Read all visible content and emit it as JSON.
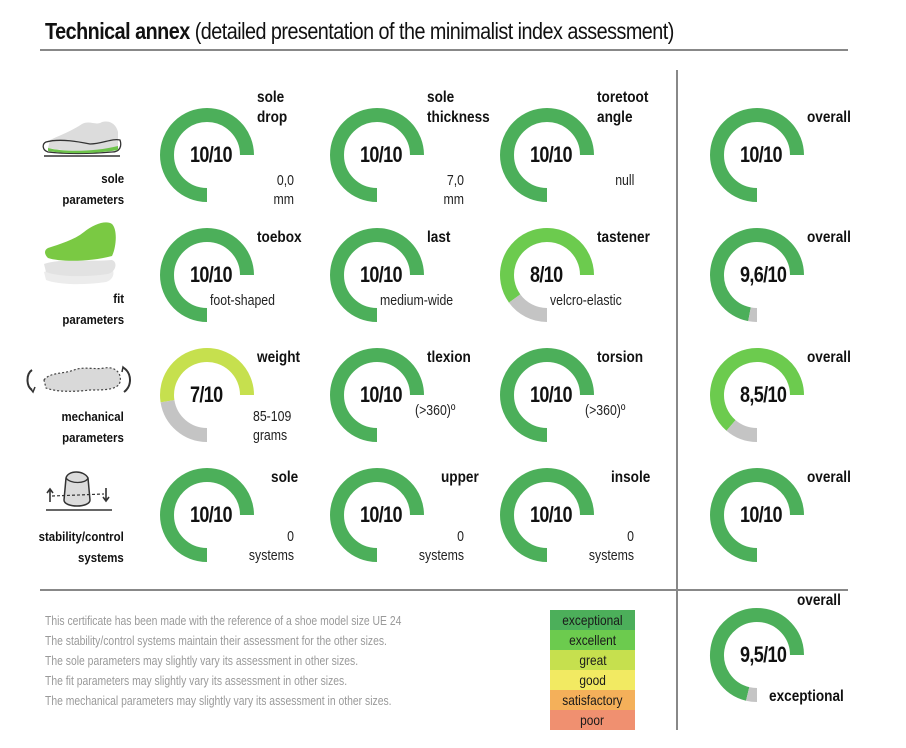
{
  "header": {
    "title_bold": "Technical annex",
    "title_rest": "(detailed presentation of the minimalist index assessment)"
  },
  "colors": {
    "exceptional": "#4caf5a",
    "excellent": "#6ccb4e",
    "great": "#c6e04e",
    "good": "#f2ea62",
    "satisfactory": "#f4b05a",
    "poor": "#f09070",
    "remainder": "#c4c4c4"
  },
  "rows": [
    {
      "id": "sole",
      "label_lines": [
        "sole",
        "parameters"
      ],
      "icon": "shoe-sole-icon",
      "gauges": [
        {
          "label_lines": [
            "sole",
            "drop"
          ],
          "score_text": "10/10",
          "score": 10,
          "value_lines": [
            "0,0",
            "mm"
          ],
          "color": "exceptional"
        },
        {
          "label_lines": [
            "sole",
            "thickness"
          ],
          "score_text": "10/10",
          "score": 10,
          "value_lines": [
            "7,0",
            "mm"
          ],
          "color": "exceptional"
        },
        {
          "label_lines": [
            "toretoot",
            "angle"
          ],
          "score_text": "10/10",
          "score": 10,
          "value_lines": [
            "null"
          ],
          "color": "exceptional"
        }
      ],
      "overall": {
        "label": "overall",
        "score_text": "10/10",
        "score": 10,
        "color": "exceptional"
      }
    },
    {
      "id": "fit",
      "label_lines": [
        "fit",
        "parameters"
      ],
      "icon": "shoe-upper-icon",
      "gauges": [
        {
          "label_lines": [
            "toebox"
          ],
          "score_text": "10/10",
          "score": 10,
          "value_lines": [
            "foot-shaped"
          ],
          "color": "exceptional"
        },
        {
          "label_lines": [
            "last"
          ],
          "score_text": "10/10",
          "score": 10,
          "value_lines": [
            "medium-wide"
          ],
          "color": "exceptional"
        },
        {
          "label_lines": [
            "tastener"
          ],
          "score_text": "8/10",
          "score": 8,
          "value_lines": [
            "velcro-elastic"
          ],
          "color": "excellent"
        }
      ],
      "overall": {
        "label": "overall",
        "score_text": "9,6/10",
        "score": 9.6,
        "color": "exceptional"
      }
    },
    {
      "id": "mechanical",
      "label_lines": [
        "mechanical",
        "parameters"
      ],
      "icon": "shoe-flex-icon",
      "gauges": [
        {
          "label_lines": [
            "weight"
          ],
          "score_text": "7/10",
          "score": 7,
          "value_lines": [
            "85-109",
            "grams"
          ],
          "color": "great"
        },
        {
          "label_lines": [
            "tlexion"
          ],
          "score_text": "10/10",
          "score": 10,
          "value_lines": [
            "(>360)º"
          ],
          "color": "exceptional"
        },
        {
          "label_lines": [
            "torsion"
          ],
          "score_text": "10/10",
          "score": 10,
          "value_lines": [
            "(>360)º"
          ],
          "color": "exceptional"
        }
      ],
      "overall": {
        "label": "overall",
        "score_text": "8,5/10",
        "score": 8.5,
        "color": "excellent"
      }
    },
    {
      "id": "stability",
      "label_lines": [
        "stability/control",
        "systems"
      ],
      "icon": "heel-stability-icon",
      "gauges": [
        {
          "label_lines": [
            "sole"
          ],
          "score_text": "10/10",
          "score": 10,
          "value_lines": [
            "0",
            "systems"
          ],
          "color": "exceptional"
        },
        {
          "label_lines": [
            "upper"
          ],
          "score_text": "10/10",
          "score": 10,
          "value_lines": [
            "0",
            "systems"
          ],
          "color": "exceptional"
        },
        {
          "label_lines": [
            "insole"
          ],
          "score_text": "10/10",
          "score": 10,
          "value_lines": [
            "0",
            "systems"
          ],
          "color": "exceptional"
        }
      ],
      "overall": {
        "label": "overall",
        "score_text": "10/10",
        "score": 10,
        "color": "exceptional"
      }
    }
  ],
  "final": {
    "label": "overall",
    "score_text": "9,5/10",
    "score": 9.5,
    "rating": "exceptional",
    "color": "exceptional"
  },
  "notes": [
    "This certificate has been made with the reference of a shoe model size UE 24",
    "The stability/control systems maintain their assessment for the other sizes.",
    "The sole parameters may slightly vary its assessment in other sizes.",
    "The fit parameters may slightly vary its assessment in other sizes.",
    "The mechanical parameters may slightly vary its assessment in other sizes."
  ],
  "legend": [
    {
      "label": "exceptional",
      "color": "#4caf5a"
    },
    {
      "label": "excellent",
      "color": "#6ccb4e"
    },
    {
      "label": "great",
      "color": "#c6e04e"
    },
    {
      "label": "good",
      "color": "#f2ea62"
    },
    {
      "label": "satisfactory",
      "color": "#f4b05a"
    },
    {
      "label": "poor",
      "color": "#f09070"
    }
  ]
}
